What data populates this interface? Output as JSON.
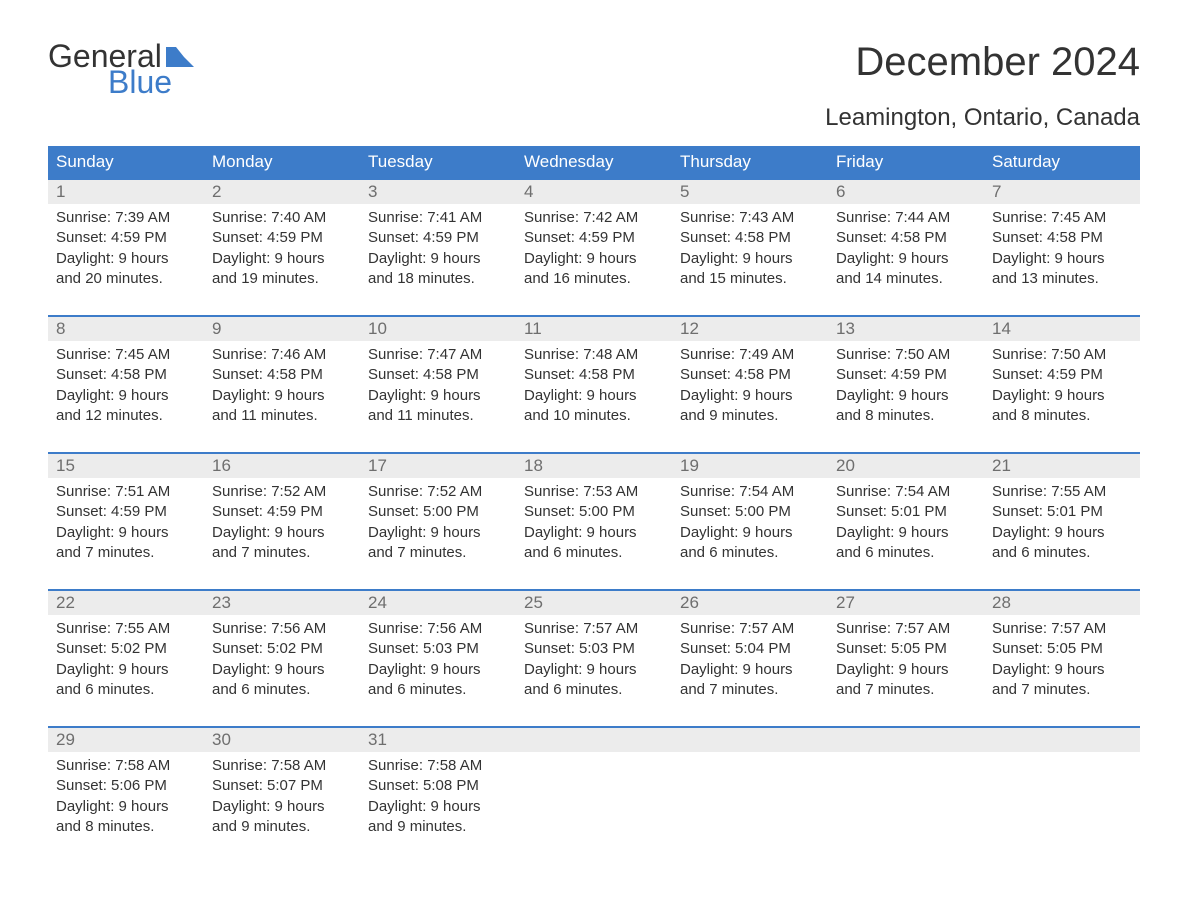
{
  "brand": {
    "word1": "General",
    "word2": "Blue"
  },
  "title": "December 2024",
  "subtitle": "Leamington, Ontario, Canada",
  "colors": {
    "header_bg": "#3d7cc9",
    "header_text": "#ffffff",
    "daynum_bg": "#ececec",
    "daynum_text": "#6e6e6e",
    "body_text": "#333333",
    "week_border": "#3d7cc9",
    "page_bg": "#ffffff",
    "logo_accent": "#3d7cc9"
  },
  "layout": {
    "columns": 7,
    "title_fontsize": 40,
    "subtitle_fontsize": 24,
    "dow_fontsize": 17,
    "daynum_fontsize": 17,
    "body_fontsize": 15
  },
  "dow": [
    "Sunday",
    "Monday",
    "Tuesday",
    "Wednesday",
    "Thursday",
    "Friday",
    "Saturday"
  ],
  "weeks": [
    [
      {
        "n": "1",
        "sunrise": "Sunrise: 7:39 AM",
        "sunset": "Sunset: 4:59 PM",
        "d1": "Daylight: 9 hours",
        "d2": "and 20 minutes."
      },
      {
        "n": "2",
        "sunrise": "Sunrise: 7:40 AM",
        "sunset": "Sunset: 4:59 PM",
        "d1": "Daylight: 9 hours",
        "d2": "and 19 minutes."
      },
      {
        "n": "3",
        "sunrise": "Sunrise: 7:41 AM",
        "sunset": "Sunset: 4:59 PM",
        "d1": "Daylight: 9 hours",
        "d2": "and 18 minutes."
      },
      {
        "n": "4",
        "sunrise": "Sunrise: 7:42 AM",
        "sunset": "Sunset: 4:59 PM",
        "d1": "Daylight: 9 hours",
        "d2": "and 16 minutes."
      },
      {
        "n": "5",
        "sunrise": "Sunrise: 7:43 AM",
        "sunset": "Sunset: 4:58 PM",
        "d1": "Daylight: 9 hours",
        "d2": "and 15 minutes."
      },
      {
        "n": "6",
        "sunrise": "Sunrise: 7:44 AM",
        "sunset": "Sunset: 4:58 PM",
        "d1": "Daylight: 9 hours",
        "d2": "and 14 minutes."
      },
      {
        "n": "7",
        "sunrise": "Sunrise: 7:45 AM",
        "sunset": "Sunset: 4:58 PM",
        "d1": "Daylight: 9 hours",
        "d2": "and 13 minutes."
      }
    ],
    [
      {
        "n": "8",
        "sunrise": "Sunrise: 7:45 AM",
        "sunset": "Sunset: 4:58 PM",
        "d1": "Daylight: 9 hours",
        "d2": "and 12 minutes."
      },
      {
        "n": "9",
        "sunrise": "Sunrise: 7:46 AM",
        "sunset": "Sunset: 4:58 PM",
        "d1": "Daylight: 9 hours",
        "d2": "and 11 minutes."
      },
      {
        "n": "10",
        "sunrise": "Sunrise: 7:47 AM",
        "sunset": "Sunset: 4:58 PM",
        "d1": "Daylight: 9 hours",
        "d2": "and 11 minutes."
      },
      {
        "n": "11",
        "sunrise": "Sunrise: 7:48 AM",
        "sunset": "Sunset: 4:58 PM",
        "d1": "Daylight: 9 hours",
        "d2": "and 10 minutes."
      },
      {
        "n": "12",
        "sunrise": "Sunrise: 7:49 AM",
        "sunset": "Sunset: 4:58 PM",
        "d1": "Daylight: 9 hours",
        "d2": "and 9 minutes."
      },
      {
        "n": "13",
        "sunrise": "Sunrise: 7:50 AM",
        "sunset": "Sunset: 4:59 PM",
        "d1": "Daylight: 9 hours",
        "d2": "and 8 minutes."
      },
      {
        "n": "14",
        "sunrise": "Sunrise: 7:50 AM",
        "sunset": "Sunset: 4:59 PM",
        "d1": "Daylight: 9 hours",
        "d2": "and 8 minutes."
      }
    ],
    [
      {
        "n": "15",
        "sunrise": "Sunrise: 7:51 AM",
        "sunset": "Sunset: 4:59 PM",
        "d1": "Daylight: 9 hours",
        "d2": "and 7 minutes."
      },
      {
        "n": "16",
        "sunrise": "Sunrise: 7:52 AM",
        "sunset": "Sunset: 4:59 PM",
        "d1": "Daylight: 9 hours",
        "d2": "and 7 minutes."
      },
      {
        "n": "17",
        "sunrise": "Sunrise: 7:52 AM",
        "sunset": "Sunset: 5:00 PM",
        "d1": "Daylight: 9 hours",
        "d2": "and 7 minutes."
      },
      {
        "n": "18",
        "sunrise": "Sunrise: 7:53 AM",
        "sunset": "Sunset: 5:00 PM",
        "d1": "Daylight: 9 hours",
        "d2": "and 6 minutes."
      },
      {
        "n": "19",
        "sunrise": "Sunrise: 7:54 AM",
        "sunset": "Sunset: 5:00 PM",
        "d1": "Daylight: 9 hours",
        "d2": "and 6 minutes."
      },
      {
        "n": "20",
        "sunrise": "Sunrise: 7:54 AM",
        "sunset": "Sunset: 5:01 PM",
        "d1": "Daylight: 9 hours",
        "d2": "and 6 minutes."
      },
      {
        "n": "21",
        "sunrise": "Sunrise: 7:55 AM",
        "sunset": "Sunset: 5:01 PM",
        "d1": "Daylight: 9 hours",
        "d2": "and 6 minutes."
      }
    ],
    [
      {
        "n": "22",
        "sunrise": "Sunrise: 7:55 AM",
        "sunset": "Sunset: 5:02 PM",
        "d1": "Daylight: 9 hours",
        "d2": "and 6 minutes."
      },
      {
        "n": "23",
        "sunrise": "Sunrise: 7:56 AM",
        "sunset": "Sunset: 5:02 PM",
        "d1": "Daylight: 9 hours",
        "d2": "and 6 minutes."
      },
      {
        "n": "24",
        "sunrise": "Sunrise: 7:56 AM",
        "sunset": "Sunset: 5:03 PM",
        "d1": "Daylight: 9 hours",
        "d2": "and 6 minutes."
      },
      {
        "n": "25",
        "sunrise": "Sunrise: 7:57 AM",
        "sunset": "Sunset: 5:03 PM",
        "d1": "Daylight: 9 hours",
        "d2": "and 6 minutes."
      },
      {
        "n": "26",
        "sunrise": "Sunrise: 7:57 AM",
        "sunset": "Sunset: 5:04 PM",
        "d1": "Daylight: 9 hours",
        "d2": "and 7 minutes."
      },
      {
        "n": "27",
        "sunrise": "Sunrise: 7:57 AM",
        "sunset": "Sunset: 5:05 PM",
        "d1": "Daylight: 9 hours",
        "d2": "and 7 minutes."
      },
      {
        "n": "28",
        "sunrise": "Sunrise: 7:57 AM",
        "sunset": "Sunset: 5:05 PM",
        "d1": "Daylight: 9 hours",
        "d2": "and 7 minutes."
      }
    ],
    [
      {
        "n": "29",
        "sunrise": "Sunrise: 7:58 AM",
        "sunset": "Sunset: 5:06 PM",
        "d1": "Daylight: 9 hours",
        "d2": "and 8 minutes."
      },
      {
        "n": "30",
        "sunrise": "Sunrise: 7:58 AM",
        "sunset": "Sunset: 5:07 PM",
        "d1": "Daylight: 9 hours",
        "d2": "and 9 minutes."
      },
      {
        "n": "31",
        "sunrise": "Sunrise: 7:58 AM",
        "sunset": "Sunset: 5:08 PM",
        "d1": "Daylight: 9 hours",
        "d2": "and 9 minutes."
      },
      {
        "n": "",
        "sunrise": "",
        "sunset": "",
        "d1": "",
        "d2": ""
      },
      {
        "n": "",
        "sunrise": "",
        "sunset": "",
        "d1": "",
        "d2": ""
      },
      {
        "n": "",
        "sunrise": "",
        "sunset": "",
        "d1": "",
        "d2": ""
      },
      {
        "n": "",
        "sunrise": "",
        "sunset": "",
        "d1": "",
        "d2": ""
      }
    ]
  ]
}
